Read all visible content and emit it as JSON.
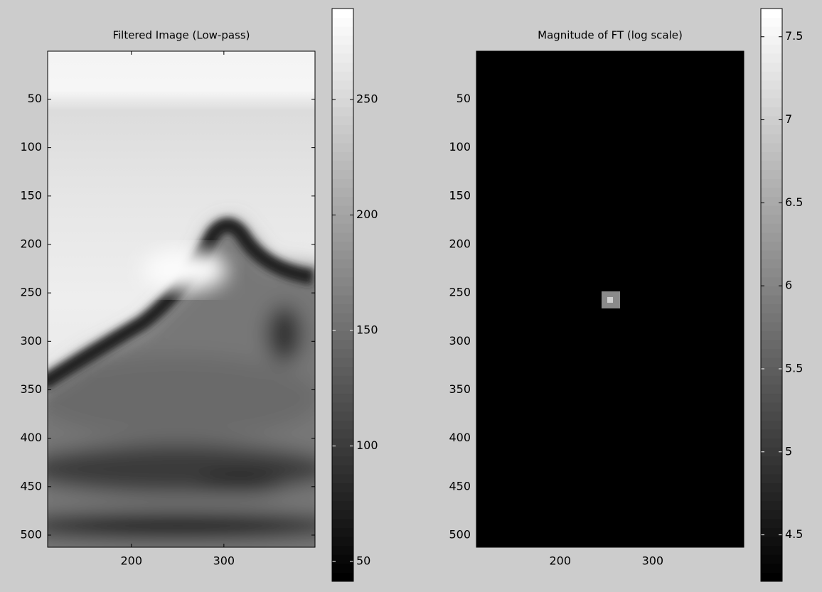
{
  "chart_data": [
    {
      "type": "image",
      "title": "Filtered Image (Low-pass)",
      "xlim": [
        109.5,
        398.5
      ],
      "ylim": [
        0.5,
        512.5
      ],
      "y_reversed": true,
      "xticks": [
        200,
        300
      ],
      "yticks": [
        50,
        100,
        150,
        200,
        250,
        300,
        350,
        400,
        450,
        500
      ],
      "colormap": "gray",
      "colorbar": {
        "lim": [
          41.4,
          289.4
        ],
        "ticks": [
          50,
          100,
          150,
          200,
          250
        ]
      }
    },
    {
      "type": "image",
      "title": "Magnitude of FT (log scale)",
      "xlim": [
        109.5,
        398.5
      ],
      "ylim": [
        0.5,
        512.5
      ],
      "y_reversed": true,
      "xticks": [
        200,
        300
      ],
      "yticks": [
        50,
        100,
        150,
        200,
        250,
        300,
        350,
        400,
        450,
        500
      ],
      "colormap": "gray",
      "colorbar": {
        "lim": [
          4.22,
          7.67
        ],
        "ticks": [
          4.5,
          5,
          5.5,
          6,
          6.5,
          7,
          7.5
        ]
      }
    }
  ]
}
